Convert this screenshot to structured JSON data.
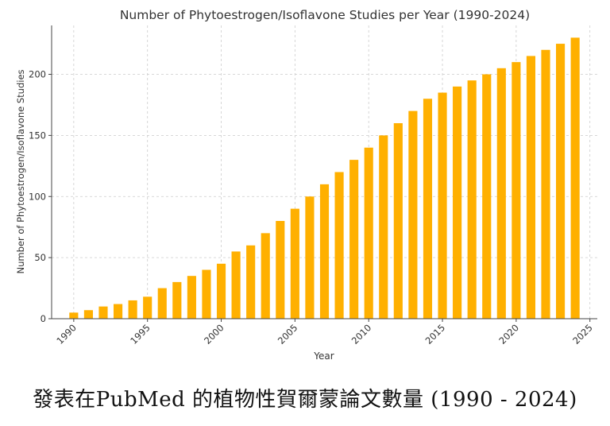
{
  "caption": "發表在PubMed 的植物性賀爾蒙論文數量 (1990 - 2024)",
  "colors": {
    "bar": "#FFB000",
    "grid": "#cccccc",
    "axis": "#444444",
    "text": "#333333"
  },
  "chart_data": {
    "type": "bar",
    "title": "Number of Phytoestrogen/Isoflavone Studies per Year (1990-2024)",
    "xlabel": "Year",
    "ylabel": "Number of Phytoestrogen/Isoflavone Studies",
    "xlim": [
      1988.5,
      2025.5
    ],
    "ylim": [
      0,
      240
    ],
    "grid": true,
    "x_ticks": [
      1990,
      1995,
      2000,
      2005,
      2010,
      2015,
      2020,
      2025
    ],
    "y_ticks": [
      0,
      50,
      100,
      150,
      200
    ],
    "x": [
      1990,
      1991,
      1992,
      1993,
      1994,
      1995,
      1996,
      1997,
      1998,
      1999,
      2000,
      2001,
      2002,
      2003,
      2004,
      2005,
      2006,
      2007,
      2008,
      2009,
      2010,
      2011,
      2012,
      2013,
      2014,
      2015,
      2016,
      2017,
      2018,
      2019,
      2020,
      2021,
      2022,
      2023,
      2024
    ],
    "values": [
      5,
      7,
      10,
      12,
      15,
      18,
      25,
      30,
      35,
      40,
      45,
      55,
      60,
      70,
      80,
      90,
      100,
      110,
      120,
      130,
      140,
      150,
      160,
      170,
      180,
      185,
      190,
      195,
      200,
      205,
      210,
      215,
      220,
      225,
      230
    ]
  }
}
